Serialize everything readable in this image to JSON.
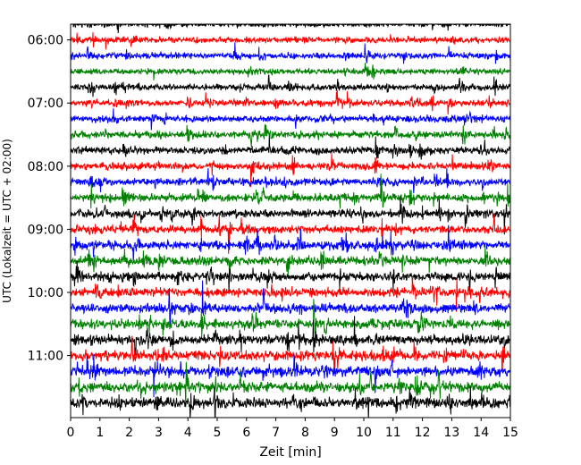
{
  "chart_data": {
    "type": "line",
    "title": "",
    "xlabel": "Zeit  [min]",
    "ylabel": "UTC (Lokalzeit = UTC + 02:00)",
    "xlim": [
      0,
      15
    ],
    "x_ticks": [
      0,
      1,
      2,
      3,
      4,
      5,
      6,
      7,
      8,
      9,
      10,
      11,
      12,
      13,
      14,
      15
    ],
    "y_ticks": [
      "06:00",
      "07:00",
      "08:00",
      "09:00",
      "10:00",
      "11:00"
    ],
    "ylim": [
      "05:45",
      "11:59"
    ],
    "trace_interval_minutes": 15,
    "color_cycle": [
      "#000000",
      "#ff0000",
      "#0000ff",
      "#008000"
    ],
    "traces_utc_start": [
      "05:45",
      "06:00",
      "06:15",
      "06:30",
      "06:45",
      "07:00",
      "07:15",
      "07:30",
      "07:45",
      "08:00",
      "08:15",
      "08:30",
      "08:45",
      "09:00",
      "09:15",
      "09:30",
      "09:45",
      "10:00",
      "10:15",
      "10:30",
      "10:45",
      "11:00",
      "11:15",
      "11:30",
      "11:45"
    ],
    "grid": false,
    "legend": "none"
  }
}
